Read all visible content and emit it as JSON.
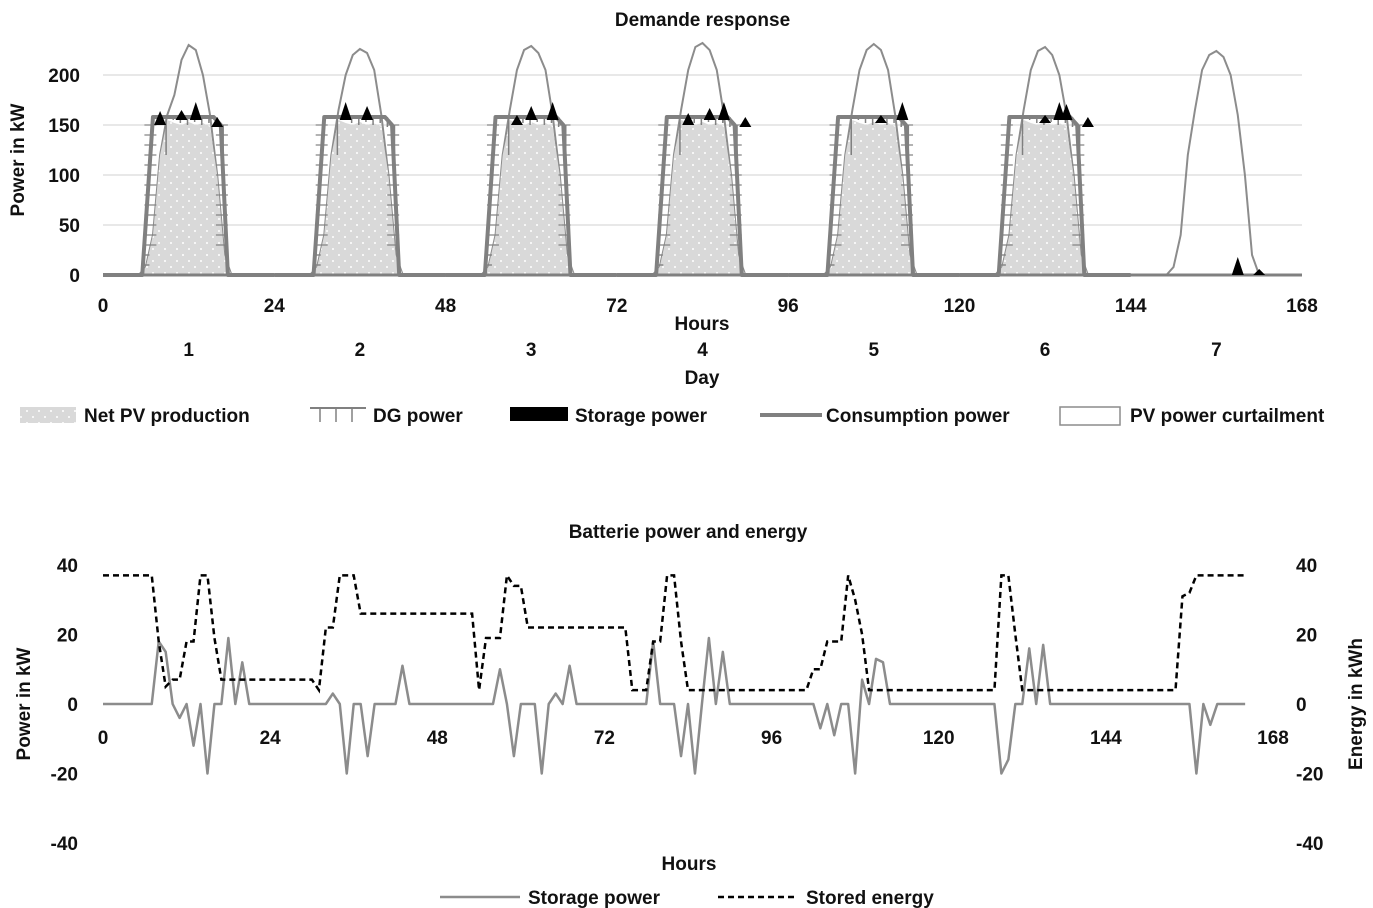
{
  "chart_data": [
    {
      "type": "area",
      "title": "Demande response",
      "ylabel": "Power in kW",
      "xlabel": "Hours",
      "xlabel2": "Day",
      "xlim": [
        0,
        168
      ],
      "ylim": [
        0,
        230
      ],
      "x_ticks": [
        0,
        24,
        48,
        72,
        96,
        120,
        144,
        168
      ],
      "y_ticks": [
        0,
        50,
        100,
        150,
        200
      ],
      "grid": true,
      "legend_position": "bottom",
      "day_labels": [
        "1",
        "2",
        "3",
        "4",
        "5",
        "6",
        "7"
      ],
      "days": 7,
      "hours_per_day": 24,
      "series_order": [
        "Net PV production",
        "DG power",
        "Storage power",
        "Consumption power",
        "PV power curtailment"
      ],
      "series": [
        {
          "name": "PV power curtailment",
          "style": "line",
          "color": "#8c8c8c",
          "profile_hours": [
            0,
            1,
            2,
            3,
            4,
            5,
            6,
            7,
            8,
            9,
            10,
            11,
            12,
            13,
            14,
            15,
            16,
            17,
            18,
            19,
            20,
            21,
            22,
            23
          ],
          "profiles": [
            [
              0,
              0,
              0,
              0,
              0,
              0,
              8,
              40,
              120,
              160,
              180,
              215,
              230,
              225,
              200,
              160,
              100,
              20,
              0,
              0,
              0,
              0,
              0,
              0
            ],
            [
              0,
              0,
              0,
              0,
              0,
              0,
              8,
              40,
              120,
              165,
              200,
              220,
              226,
              222,
              205,
              160,
              100,
              20,
              0,
              0,
              0,
              0,
              0,
              0
            ],
            [
              0,
              0,
              0,
              0,
              0,
              0,
              8,
              40,
              120,
              165,
              205,
              225,
              229,
              222,
              205,
              160,
              100,
              20,
              0,
              0,
              0,
              0,
              0,
              0
            ],
            [
              0,
              0,
              0,
              0,
              0,
              0,
              8,
              40,
              120,
              165,
              205,
              228,
              232,
              225,
              205,
              160,
              100,
              20,
              0,
              0,
              0,
              0,
              0,
              0
            ],
            [
              0,
              0,
              0,
              0,
              0,
              0,
              8,
              40,
              120,
              165,
              205,
              225,
              231,
              225,
              205,
              160,
              100,
              20,
              0,
              0,
              0,
              0,
              0,
              0
            ],
            [
              0,
              0,
              0,
              0,
              0,
              0,
              8,
              40,
              120,
              165,
              205,
              224,
              228,
              220,
              200,
              160,
              100,
              20,
              0,
              0,
              0,
              0,
              0,
              0
            ],
            [
              0,
              0,
              0,
              0,
              0,
              0,
              8,
              40,
              120,
              165,
              205,
              220,
              224,
              218,
              200,
              160,
              100,
              20,
              0,
              0,
              0,
              0,
              0,
              0
            ]
          ]
        },
        {
          "name": "Consumption power",
          "style": "thick-line",
          "color": "#808080",
          "profile": [
            0,
            0,
            0,
            0,
            0,
            0,
            0,
            0,
            158,
            158,
            158,
            158,
            158,
            158,
            158,
            158,
            150,
            0,
            0,
            0,
            0,
            0,
            0,
            0
          ],
          "active_days": [
            1,
            2,
            3,
            4,
            5,
            6
          ]
        },
        {
          "name": "Net PV production",
          "style": "area",
          "color": "#d9d9d9",
          "profile": [
            0,
            0,
            0,
            0,
            0,
            0,
            8,
            40,
            120,
            155,
            152,
            150,
            153,
            150,
            152,
            148,
            100,
            20,
            0,
            0,
            0,
            0,
            0,
            0
          ],
          "active_days": [
            1,
            2,
            3,
            4,
            5,
            6
          ]
        },
        {
          "name": "DG power",
          "style": "hatched-band",
          "color": "#808080",
          "active_days": [
            1,
            2,
            3,
            4,
            5,
            6
          ]
        },
        {
          "name": "Storage power",
          "style": "spikes",
          "color": "#000000",
          "events": [
            {
              "x": 8,
              "y": 150,
              "h": 14
            },
            {
              "x": 11,
              "y": 155,
              "h": 10
            },
            {
              "x": 13,
              "y": 155,
              "h": 18
            },
            {
              "x": 16,
              "y": 148,
              "h": 10
            },
            {
              "x": 34,
              "y": 155,
              "h": 18
            },
            {
              "x": 37,
              "y": 155,
              "h": 14
            },
            {
              "x": 58,
              "y": 150,
              "h": 10
            },
            {
              "x": 60,
              "y": 155,
              "h": 14
            },
            {
              "x": 63,
              "y": 155,
              "h": 18
            },
            {
              "x": 82,
              "y": 150,
              "h": 12
            },
            {
              "x": 85,
              "y": 155,
              "h": 12
            },
            {
              "x": 87,
              "y": 155,
              "h": 18
            },
            {
              "x": 90,
              "y": 148,
              "h": 10
            },
            {
              "x": 109,
              "y": 152,
              "h": 8
            },
            {
              "x": 112,
              "y": 155,
              "h": 18
            },
            {
              "x": 132,
              "y": 152,
              "h": 8
            },
            {
              "x": 134,
              "y": 155,
              "h": 18
            },
            {
              "x": 135,
              "y": 155,
              "h": 16
            },
            {
              "x": 138,
              "y": 148,
              "h": 10
            },
            {
              "x": 159,
              "y": 0,
              "h": 18
            },
            {
              "x": 162,
              "y": 0,
              "h": 6
            }
          ]
        }
      ]
    },
    {
      "type": "line",
      "title": "Batterie power and energy",
      "ylabel": "Power in kW",
      "ylabel_right": "Energy in kWh",
      "xlabel": "Hours",
      "xlim": [
        0,
        168
      ],
      "ylim": [
        -40,
        40
      ],
      "x_ticks": [
        0,
        24,
        48,
        72,
        96,
        120,
        144,
        168
      ],
      "y_ticks": [
        -40,
        -20,
        0,
        20,
        40
      ],
      "grid": false,
      "legend_position": "bottom",
      "series": [
        {
          "name": "Storage power",
          "style": "solid",
          "color": "#8c8c8c",
          "points": [
            [
              0,
              0
            ],
            [
              7,
              0
            ],
            [
              8,
              18
            ],
            [
              9,
              15
            ],
            [
              10,
              0
            ],
            [
              11,
              -4
            ],
            [
              12,
              0
            ],
            [
              13,
              -12
            ],
            [
              14,
              0
            ],
            [
              15,
              -20
            ],
            [
              16,
              0
            ],
            [
              17,
              0
            ],
            [
              18,
              19
            ],
            [
              19,
              0
            ],
            [
              20,
              12
            ],
            [
              21,
              0
            ],
            [
              32,
              0
            ],
            [
              33,
              3
            ],
            [
              34,
              0
            ],
            [
              35,
              -20
            ],
            [
              36,
              0
            ],
            [
              37,
              0
            ],
            [
              38,
              -15
            ],
            [
              39,
              0
            ],
            [
              41,
              0
            ],
            [
              42,
              0
            ],
            [
              43,
              11
            ],
            [
              44,
              0
            ],
            [
              56,
              0
            ],
            [
              57,
              10
            ],
            [
              58,
              0
            ],
            [
              59,
              -15
            ],
            [
              60,
              0
            ],
            [
              62,
              0
            ],
            [
              63,
              -20
            ],
            [
              64,
              0
            ],
            [
              65,
              3
            ],
            [
              66,
              0
            ],
            [
              67,
              11
            ],
            [
              68,
              0
            ],
            [
              78,
              0
            ],
            [
              79,
              18
            ],
            [
              80,
              0
            ],
            [
              82,
              0
            ],
            [
              83,
              -15
            ],
            [
              84,
              0
            ],
            [
              85,
              -20
            ],
            [
              86,
              0
            ],
            [
              87,
              19
            ],
            [
              88,
              0
            ],
            [
              89,
              15
            ],
            [
              90,
              0
            ],
            [
              102,
              0
            ],
            [
              103,
              -7
            ],
            [
              104,
              0
            ],
            [
              105,
              -9
            ],
            [
              106,
              0
            ],
            [
              107,
              0
            ],
            [
              108,
              -20
            ],
            [
              109,
              7
            ],
            [
              110,
              0
            ],
            [
              111,
              13
            ],
            [
              112,
              12
            ],
            [
              113,
              0
            ],
            [
              128,
              0
            ],
            [
              129,
              -20
            ],
            [
              130,
              -16
            ],
            [
              131,
              0
            ],
            [
              132,
              0
            ],
            [
              133,
              16
            ],
            [
              134,
              0
            ],
            [
              135,
              17
            ],
            [
              136,
              0
            ],
            [
              156,
              0
            ],
            [
              157,
              -20
            ],
            [
              158,
              0
            ],
            [
              159,
              -6
            ],
            [
              160,
              0
            ],
            [
              164,
              0
            ]
          ]
        },
        {
          "name": "Stored energy",
          "style": "dashed",
          "color": "#000000",
          "points": [
            [
              0,
              37
            ],
            [
              7,
              37
            ],
            [
              8,
              18
            ],
            [
              9,
              5
            ],
            [
              10,
              7
            ],
            [
              11,
              7
            ],
            [
              12,
              18
            ],
            [
              13,
              18
            ],
            [
              14,
              37
            ],
            [
              15,
              37
            ],
            [
              16,
              19
            ],
            [
              17,
              7
            ],
            [
              30,
              7
            ],
            [
              31,
              4
            ],
            [
              32,
              22
            ],
            [
              33,
              22
            ],
            [
              34,
              37
            ],
            [
              36,
              37
            ],
            [
              37,
              26
            ],
            [
              53,
              26
            ],
            [
              54,
              4
            ],
            [
              55,
              19
            ],
            [
              57,
              19
            ],
            [
              58,
              37
            ],
            [
              59,
              34
            ],
            [
              60,
              34
            ],
            [
              61,
              22
            ],
            [
              75,
              22
            ],
            [
              76,
              4
            ],
            [
              78,
              4
            ],
            [
              79,
              18
            ],
            [
              80,
              18
            ],
            [
              81,
              37
            ],
            [
              82,
              37
            ],
            [
              83,
              18
            ],
            [
              84,
              4
            ],
            [
              101,
              4
            ],
            [
              102,
              10
            ],
            [
              103,
              10
            ],
            [
              104,
              18
            ],
            [
              106,
              18
            ],
            [
              107,
              37
            ],
            [
              108,
              30
            ],
            [
              109,
              20
            ],
            [
              110,
              4
            ],
            [
              128,
              4
            ],
            [
              129,
              37
            ],
            [
              130,
              37
            ],
            [
              131,
              20
            ],
            [
              132,
              4
            ],
            [
              154,
              4
            ],
            [
              155,
              31
            ],
            [
              156,
              32
            ],
            [
              157,
              37
            ],
            [
              164,
              37
            ]
          ]
        }
      ]
    }
  ]
}
